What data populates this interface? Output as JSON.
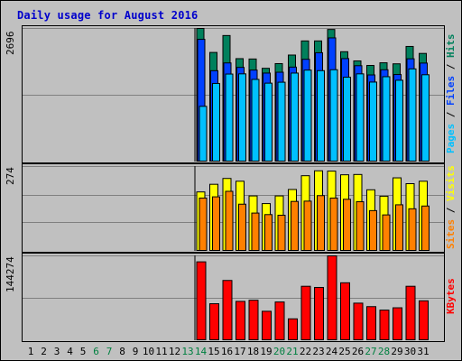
{
  "chart_data": [
    {
      "type": "bar",
      "title": "Daily usage for August 2016",
      "ymax_label": "2696",
      "ymax": 2696,
      "series": [
        {
          "name": "Hits",
          "color": "#00805c",
          "values": [
            0,
            0,
            0,
            0,
            0,
            0,
            0,
            0,
            0,
            0,
            0,
            0,
            0,
            2696,
            2208,
            2552,
            2082,
            2075,
            1886,
            1981,
            2155,
            2442,
            2442,
            2675,
            2223,
            2036,
            1944,
            1998,
            1977,
            2330,
            2188
          ]
        },
        {
          "name": "Files",
          "color": "#0040ff",
          "values": [
            0,
            0,
            0,
            0,
            0,
            0,
            0,
            0,
            0,
            0,
            0,
            0,
            0,
            2475,
            1837,
            1995,
            1904,
            1850,
            1789,
            1806,
            1910,
            2069,
            2202,
            2504,
            2083,
            1939,
            1751,
            1856,
            1760,
            2079,
            1992
          ]
        },
        {
          "name": "Pages",
          "color": "#00c0ff",
          "values": [
            0,
            0,
            0,
            0,
            0,
            0,
            0,
            0,
            0,
            0,
            0,
            0,
            0,
            1113,
            1578,
            1769,
            1773,
            1660,
            1584,
            1603,
            1789,
            1849,
            1838,
            1857,
            1705,
            1773,
            1606,
            1715,
            1643,
            1874,
            1755
          ]
        }
      ],
      "side_label_parts": [
        "Pages",
        "Files",
        "Hits"
      ]
    },
    {
      "type": "bar",
      "ymax_label": "274",
      "ymax": 274,
      "series": [
        {
          "name": "Visits",
          "color": "#ffff00",
          "values": [
            0,
            0,
            0,
            0,
            0,
            0,
            0,
            0,
            0,
            0,
            0,
            0,
            0,
            191,
            216,
            235,
            226,
            178,
            153,
            178,
            199,
            244,
            260,
            259,
            247,
            248,
            198,
            177,
            237,
            218,
            226
          ]
        },
        {
          "name": "Sites",
          "color": "#ff8000",
          "values": [
            0,
            0,
            0,
            0,
            0,
            0,
            0,
            0,
            0,
            0,
            0,
            0,
            0,
            171,
            175,
            193,
            151,
            122,
            117,
            115,
            160,
            161,
            179,
            171,
            167,
            159,
            130,
            116,
            149,
            136,
            145
          ]
        }
      ],
      "side_label_parts": [
        "Sites",
        "Visits"
      ]
    },
    {
      "type": "bar",
      "ymax_label": "144274",
      "ymax": 144274,
      "series": [
        {
          "name": "KBytes",
          "color": "#ff0000",
          "values": [
            0,
            0,
            0,
            0,
            0,
            0,
            0,
            0,
            0,
            0,
            0,
            0,
            0,
            134000,
            62000,
            102000,
            66000,
            68000,
            49000,
            65000,
            36000,
            92000,
            90000,
            144274,
            98000,
            63000,
            57000,
            51000,
            55000,
            92000,
            67000
          ]
        }
      ],
      "side_label_parts": [
        "KBytes"
      ]
    }
  ],
  "x_labels": [
    "1",
    "2",
    "3",
    "4",
    "5",
    "6",
    "7",
    "8",
    "9",
    "10",
    "11",
    "12",
    "13",
    "14",
    "15",
    "16",
    "17",
    "18",
    "19",
    "20",
    "21",
    "22",
    "23",
    "24",
    "25",
    "26",
    "27",
    "28",
    "29",
    "30",
    "31"
  ],
  "weekend_days": [
    "6",
    "7",
    "13",
    "14",
    "20",
    "21",
    "27",
    "28"
  ],
  "colors": {
    "title": "#0000cc",
    "background": "#c0c0c0",
    "grid": "#808080",
    "weekend_label": "#008040",
    "separator": "#000000"
  }
}
